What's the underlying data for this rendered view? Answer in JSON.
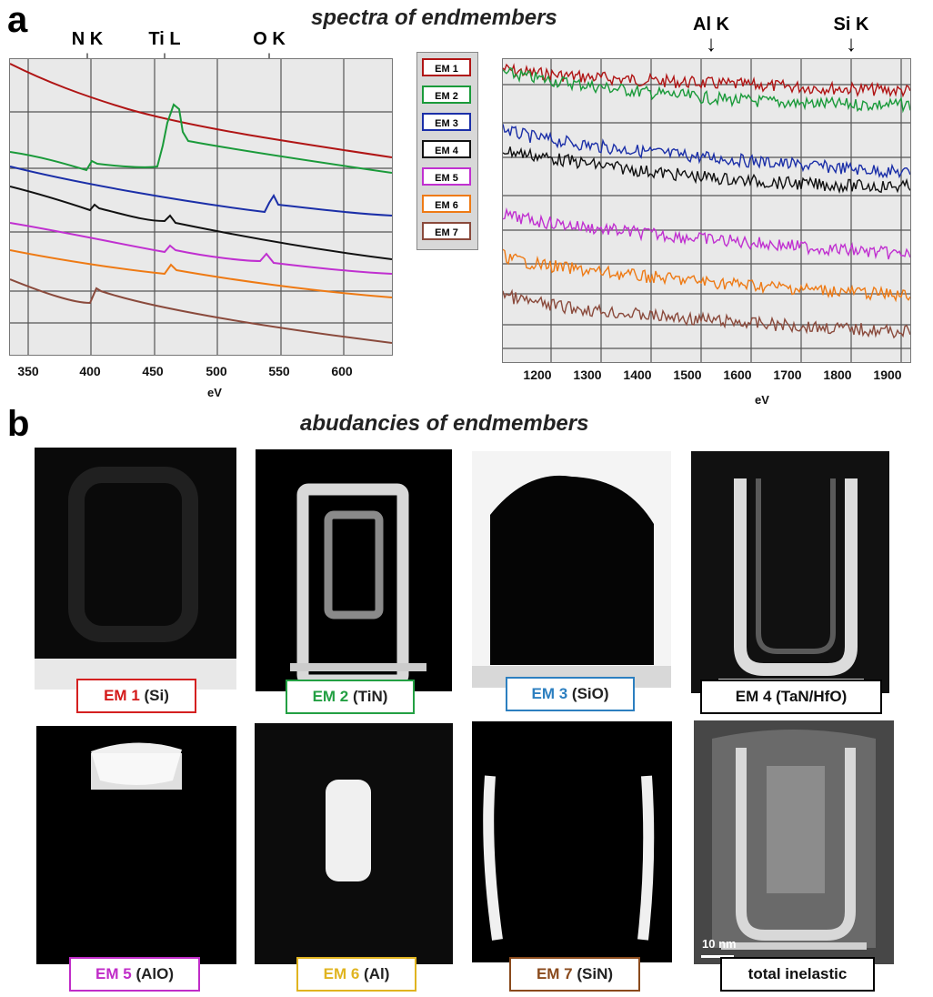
{
  "panel_a": {
    "letter": "a",
    "title": "spectra of endmembers",
    "left_plot": {
      "peaks": [
        "N K",
        "Ti L",
        "O K"
      ],
      "xticks": [
        "350",
        "400",
        "450",
        "500",
        "550",
        "600"
      ],
      "xlabel": "eV"
    },
    "right_plot": {
      "peaks": [
        "Al K",
        "Si K"
      ],
      "xticks": [
        "1200",
        "1300",
        "1400",
        "1500",
        "1600",
        "1700",
        "1800",
        "1900"
      ],
      "xlabel": "eV"
    },
    "legend": [
      {
        "label": "EM 1",
        "color": "#b01515"
      },
      {
        "label": "EM 2",
        "color": "#1a9a3a"
      },
      {
        "label": "EM 3",
        "color": "#1b2fa8"
      },
      {
        "label": "EM 4",
        "color": "#111111"
      },
      {
        "label": "EM 5",
        "color": "#c030d0"
      },
      {
        "label": "EM 6",
        "color": "#ee7a14"
      },
      {
        "label": "EM 7",
        "color": "#8a4a3c"
      }
    ]
  },
  "panel_b": {
    "letter": "b",
    "title": "abudancies of endmembers",
    "maps": [
      {
        "em": "EM 1",
        "material": "(Si)",
        "color": "#d41a1a",
        "border": "#d42020"
      },
      {
        "em": "EM 2",
        "material": "(TiN)",
        "color": "#23a043",
        "border": "#23a043"
      },
      {
        "em": "EM 3",
        "material": "(SiO)",
        "color": "#2c7fc0",
        "border": "#2c7fc0"
      },
      {
        "em": "EM 4",
        "material": "(TaN/HfO)",
        "color": "#111111",
        "border": "#111111"
      },
      {
        "em": "EM 5",
        "material": "(AlO)",
        "color": "#c02cc8",
        "border": "#c02cc8"
      },
      {
        "em": "EM 6",
        "material": "(Al)",
        "color": "#e0b420",
        "border": "#e0b420"
      },
      {
        "em": "EM 7",
        "material": "(SiN)",
        "color": "#8a4a1c",
        "border": "#8a4a1c"
      },
      {
        "em": "",
        "material": "total inelastic",
        "color": "#111111",
        "border": "#111111"
      }
    ],
    "scalebar": "10 nm"
  }
}
